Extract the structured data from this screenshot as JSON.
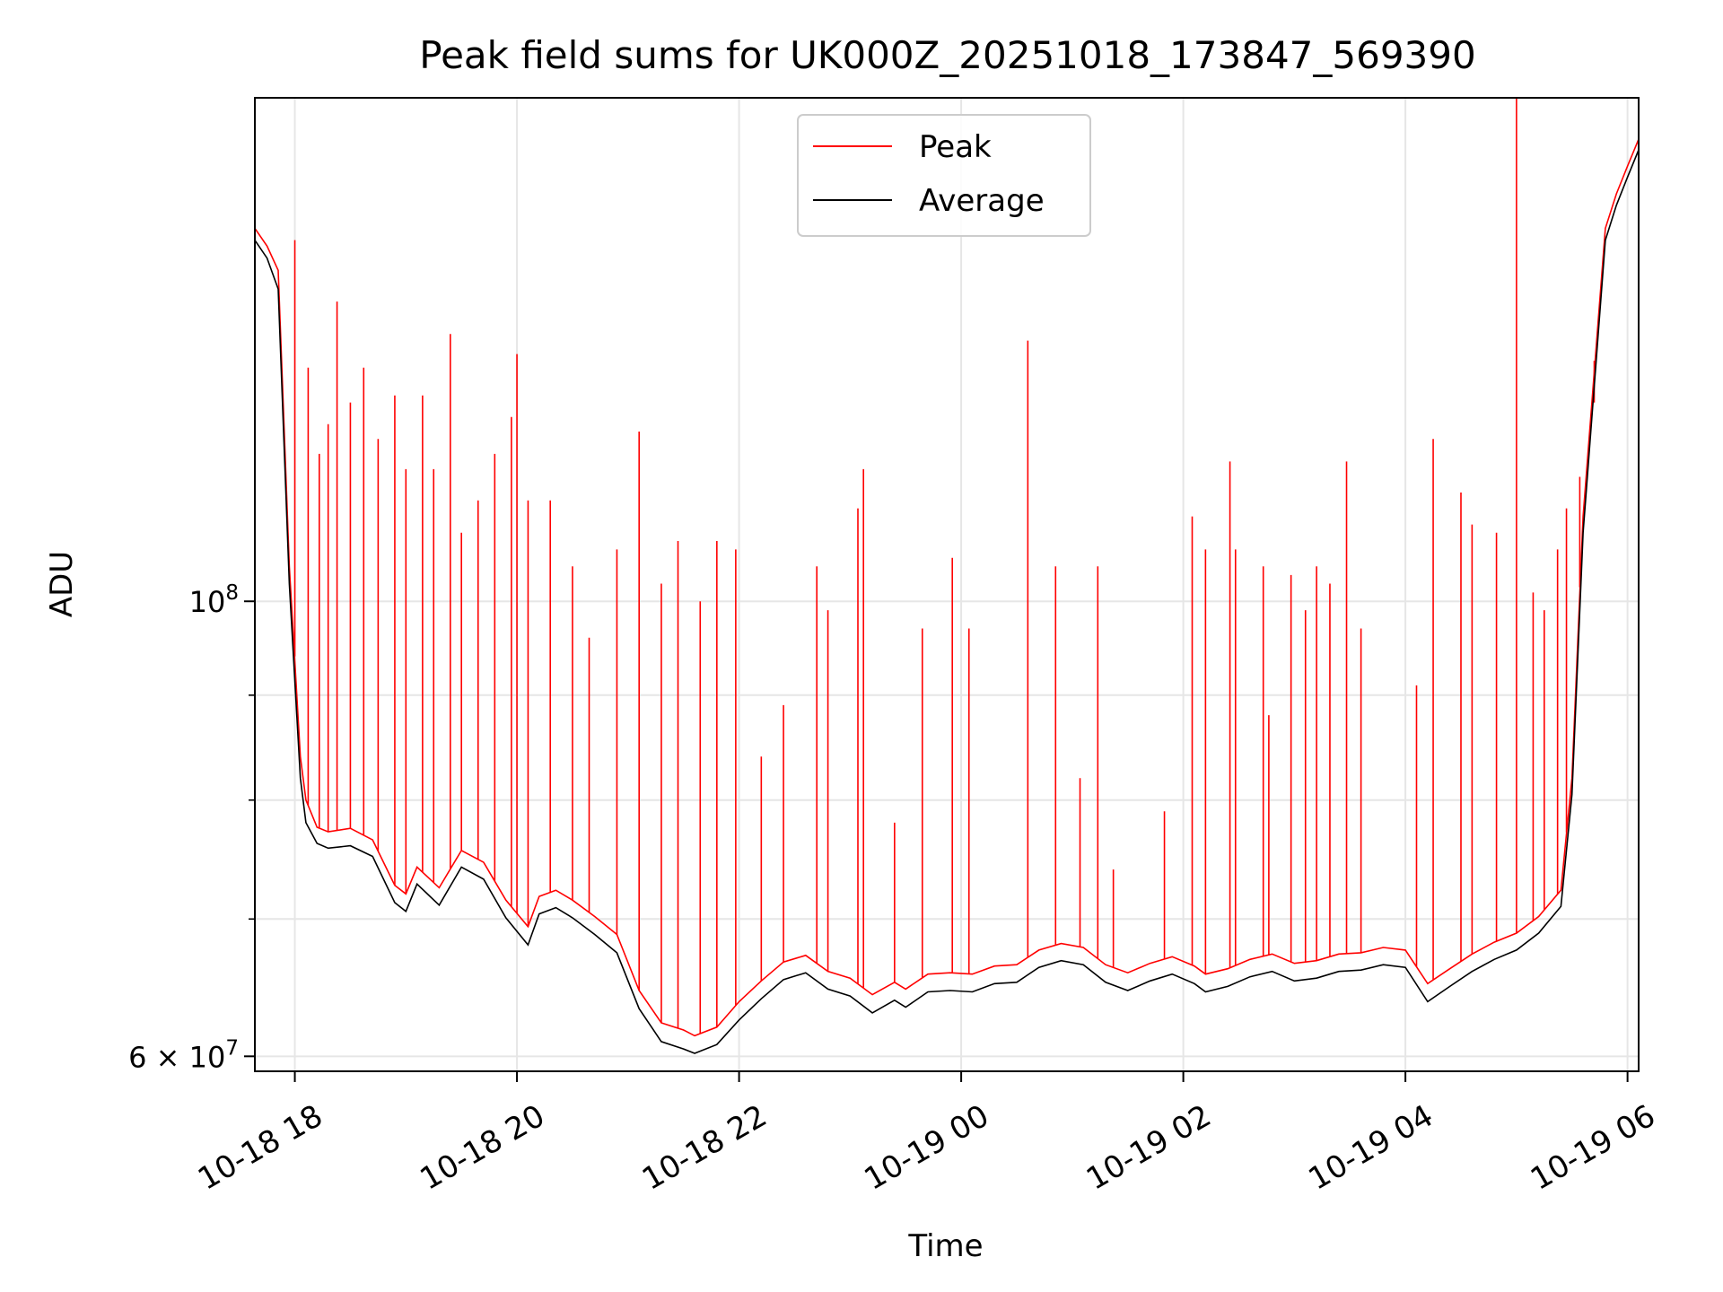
{
  "chart_data": {
    "type": "line",
    "title": "Peak field sums for UK000Z_20251018_173847_569390",
    "xlabel": "Time",
    "ylabel": "ADU",
    "yscale": "log",
    "xlim_hours": [
      17.64,
      30.1
    ],
    "ylim": [
      59000000,
      176000000
    ],
    "grid": true,
    "legend_position": "upper center",
    "x_ticks": [
      {
        "hour": 18,
        "label": "10-18 18"
      },
      {
        "hour": 20,
        "label": "10-18 20"
      },
      {
        "hour": 22,
        "label": "10-18 22"
      },
      {
        "hour": 24,
        "label": "10-19 00"
      },
      {
        "hour": 26,
        "label": "10-19 02"
      },
      {
        "hour": 28,
        "label": "10-19 04"
      },
      {
        "hour": 30,
        "label": "10-19 06"
      }
    ],
    "y_major_ticks": [
      {
        "value": 100000000,
        "base": "10",
        "exp": "8"
      },
      {
        "value": 60000000,
        "base": "6 × 10",
        "exp": "7"
      }
    ],
    "y_minor_ticks": [
      70000000,
      80000000,
      90000000
    ],
    "series": [
      {
        "name": "Peak",
        "color": "#ff0000",
        "x": [
          17.64,
          17.75,
          17.85,
          17.95,
          18.05,
          18.1,
          18.2,
          18.3,
          18.5,
          18.7,
          18.9,
          19.0,
          19.1,
          19.3,
          19.5,
          19.7,
          19.9,
          20.1,
          20.2,
          20.35,
          20.5,
          20.7,
          20.9,
          21.1,
          21.3,
          21.5,
          21.6,
          21.8,
          22.0,
          22.2,
          22.4,
          22.6,
          22.8,
          23.0,
          23.2,
          23.4,
          23.5,
          23.7,
          23.9,
          24.1,
          24.3,
          24.5,
          24.7,
          24.9,
          25.1,
          25.3,
          25.5,
          25.7,
          25.9,
          26.1,
          26.2,
          26.4,
          26.6,
          26.8,
          27.0,
          27.2,
          27.4,
          27.6,
          27.8,
          28.0,
          28.2,
          28.4,
          28.6,
          28.8,
          29.0,
          29.2,
          29.4,
          29.5,
          29.6,
          29.8,
          29.9,
          30.0,
          30.1
        ],
        "y": [
          152000000,
          149000000,
          145000000,
          104000000,
          84000000,
          80000000,
          77600000,
          77200000,
          77500000,
          76500000,
          72700000,
          72000000,
          74200000,
          72500000,
          75600000,
          74600000,
          71500000,
          69400000,
          71800000,
          72300000,
          71500000,
          70200000,
          68800000,
          64600000,
          62300000,
          61800000,
          61400000,
          62000000,
          63800000,
          65300000,
          66700000,
          67200000,
          66000000,
          65500000,
          64300000,
          65200000,
          64700000,
          65800000,
          65900000,
          65800000,
          66400000,
          66500000,
          67600000,
          68100000,
          67800000,
          66500000,
          65900000,
          66600000,
          67100000,
          66400000,
          65800000,
          66200000,
          66900000,
          67300000,
          66600000,
          66800000,
          67300000,
          67400000,
          67800000,
          67600000,
          65100000,
          66200000,
          67300000,
          68200000,
          68900000,
          70200000,
          72300000,
          82000000,
          110000000,
          152000000,
          158000000,
          163000000,
          168000000
        ],
        "spikes": [
          {
            "x": 18.0,
            "y": 150000000
          },
          {
            "x": 18.12,
            "y": 130000000
          },
          {
            "x": 18.22,
            "y": 118000000
          },
          {
            "x": 18.3,
            "y": 122000000
          },
          {
            "x": 18.38,
            "y": 140000000
          },
          {
            "x": 18.5,
            "y": 125000000
          },
          {
            "x": 18.62,
            "y": 130000000
          },
          {
            "x": 18.75,
            "y": 120000000
          },
          {
            "x": 18.9,
            "y": 126000000
          },
          {
            "x": 19.0,
            "y": 116000000
          },
          {
            "x": 19.15,
            "y": 126000000
          },
          {
            "x": 19.25,
            "y": 116000000
          },
          {
            "x": 19.4,
            "y": 135000000
          },
          {
            "x": 19.5,
            "y": 108000000
          },
          {
            "x": 19.65,
            "y": 112000000
          },
          {
            "x": 19.8,
            "y": 118000000
          },
          {
            "x": 19.95,
            "y": 123000000
          },
          {
            "x": 20.0,
            "y": 132000000
          },
          {
            "x": 20.1,
            "y": 112000000
          },
          {
            "x": 20.3,
            "y": 112000000
          },
          {
            "x": 20.5,
            "y": 104000000
          },
          {
            "x": 20.65,
            "y": 96000000
          },
          {
            "x": 20.9,
            "y": 106000000
          },
          {
            "x": 21.1,
            "y": 121000000
          },
          {
            "x": 21.3,
            "y": 102000000
          },
          {
            "x": 21.45,
            "y": 107000000
          },
          {
            "x": 21.65,
            "y": 100000000
          },
          {
            "x": 21.8,
            "y": 107000000
          },
          {
            "x": 21.97,
            "y": 106000000
          },
          {
            "x": 22.2,
            "y": 84000000
          },
          {
            "x": 22.4,
            "y": 89000000
          },
          {
            "x": 22.7,
            "y": 104000000
          },
          {
            "x": 22.8,
            "y": 99000000
          },
          {
            "x": 23.07,
            "y": 111000000
          },
          {
            "x": 23.12,
            "y": 116000000
          },
          {
            "x": 23.4,
            "y": 78000000
          },
          {
            "x": 23.65,
            "y": 97000000
          },
          {
            "x": 23.92,
            "y": 105000000
          },
          {
            "x": 24.07,
            "y": 97000000
          },
          {
            "x": 24.6,
            "y": 134000000
          },
          {
            "x": 24.85,
            "y": 104000000
          },
          {
            "x": 25.07,
            "y": 82000000
          },
          {
            "x": 25.23,
            "y": 104000000
          },
          {
            "x": 25.37,
            "y": 74000000
          },
          {
            "x": 25.83,
            "y": 79000000
          },
          {
            "x": 26.08,
            "y": 110000000
          },
          {
            "x": 26.2,
            "y": 106000000
          },
          {
            "x": 26.42,
            "y": 117000000
          },
          {
            "x": 26.47,
            "y": 106000000
          },
          {
            "x": 26.72,
            "y": 104000000
          },
          {
            "x": 26.77,
            "y": 88000000
          },
          {
            "x": 26.97,
            "y": 103000000
          },
          {
            "x": 27.1,
            "y": 99000000
          },
          {
            "x": 27.2,
            "y": 104000000
          },
          {
            "x": 27.32,
            "y": 102000000
          },
          {
            "x": 27.47,
            "y": 117000000
          },
          {
            "x": 27.6,
            "y": 97000000
          },
          {
            "x": 28.1,
            "y": 91000000
          },
          {
            "x": 28.25,
            "y": 120000000
          },
          {
            "x": 28.5,
            "y": 113000000
          },
          {
            "x": 28.6,
            "y": 109000000
          },
          {
            "x": 28.82,
            "y": 108000000
          },
          {
            "x": 29.0,
            "y": 176000000
          },
          {
            "x": 29.15,
            "y": 101000000
          },
          {
            "x": 29.25,
            "y": 99000000
          },
          {
            "x": 29.37,
            "y": 106000000
          },
          {
            "x": 29.45,
            "y": 111000000
          },
          {
            "x": 29.57,
            "y": 115000000
          },
          {
            "x": 29.7,
            "y": 125000000
          }
        ]
      },
      {
        "name": "Average",
        "color": "#000000",
        "x": [
          17.64,
          17.75,
          17.85,
          17.95,
          18.05,
          18.1,
          18.2,
          18.3,
          18.5,
          18.7,
          18.9,
          19.0,
          19.1,
          19.3,
          19.5,
          19.7,
          19.9,
          20.1,
          20.2,
          20.35,
          20.5,
          20.7,
          20.9,
          21.1,
          21.3,
          21.5,
          21.6,
          21.8,
          22.0,
          22.2,
          22.4,
          22.6,
          22.8,
          23.0,
          23.2,
          23.4,
          23.5,
          23.7,
          23.9,
          24.1,
          24.3,
          24.5,
          24.7,
          24.9,
          25.1,
          25.3,
          25.5,
          25.7,
          25.9,
          26.1,
          26.2,
          26.4,
          26.6,
          26.8,
          27.0,
          27.2,
          27.4,
          27.6,
          27.8,
          28.0,
          28.2,
          28.4,
          28.6,
          28.8,
          29.0,
          29.2,
          29.4,
          29.5,
          29.6,
          29.8,
          29.9,
          30.0,
          30.1
        ],
        "y": [
          150000000,
          147000000,
          142000000,
          102000000,
          82000000,
          78000000,
          76200000,
          75800000,
          76000000,
          75100000,
          71300000,
          70600000,
          72800000,
          71100000,
          74200000,
          73200000,
          70100000,
          68000000,
          70400000,
          70900000,
          70100000,
          68800000,
          67400000,
          63300000,
          61000000,
          60500000,
          60200000,
          60800000,
          62500000,
          64000000,
          65400000,
          65900000,
          64700000,
          64200000,
          63000000,
          63900000,
          63400000,
          64500000,
          64600000,
          64500000,
          65100000,
          65200000,
          66300000,
          66800000,
          66500000,
          65200000,
          64600000,
          65300000,
          65800000,
          65100000,
          64500000,
          64900000,
          65600000,
          66000000,
          65300000,
          65500000,
          66000000,
          66100000,
          66500000,
          66300000,
          63800000,
          64900000,
          66000000,
          66900000,
          67600000,
          68900000,
          71000000,
          80500000,
          108000000,
          150000000,
          156000000,
          161000000,
          166000000
        ]
      }
    ]
  }
}
